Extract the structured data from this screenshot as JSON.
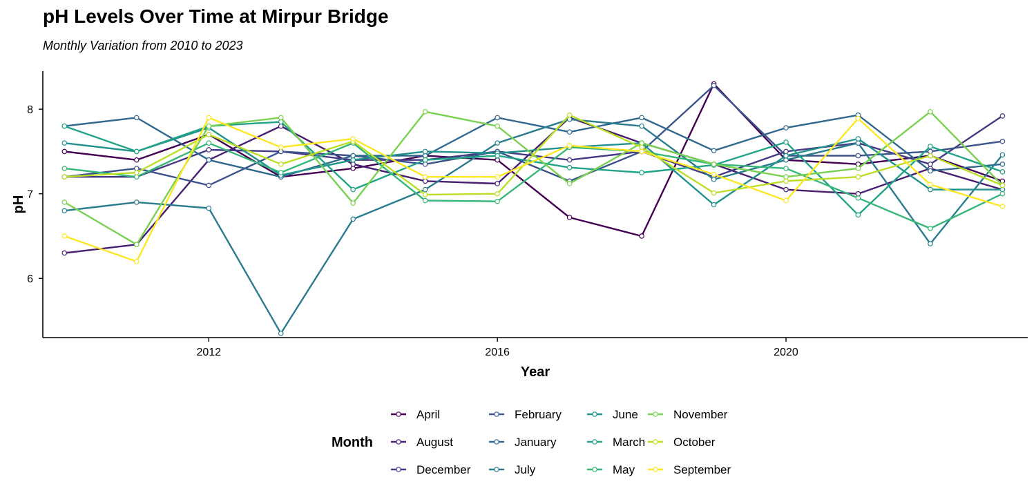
{
  "chart_data": {
    "type": "line",
    "title": "pH Levels Over Time at Mirpur Bridge",
    "subtitle": "Monthly Variation from 2010 to 2023",
    "xlabel": "Year",
    "ylabel": "pH",
    "xlim": [
      2009.7,
      2023.35
    ],
    "ylim": [
      5.3,
      8.45
    ],
    "x_ticks": [
      2012,
      2016,
      2020
    ],
    "y_ticks": [
      6,
      7,
      8
    ],
    "grid": false,
    "legend_title": "Month",
    "legend_position": "bottom",
    "x": [
      2010,
      2011,
      2012,
      2013,
      2014,
      2015,
      2016,
      2017,
      2018,
      2019,
      2020,
      2021,
      2022,
      2023
    ],
    "series": [
      {
        "name": "April",
        "color": "#440154",
        "values": [
          7.5,
          7.4,
          7.7,
          7.2,
          7.3,
          7.45,
          7.4,
          6.72,
          6.5,
          8.3,
          7.4,
          7.35,
          7.45,
          7.15
        ]
      },
      {
        "name": "August",
        "color": "#481F70",
        "values": [
          6.3,
          6.4,
          7.4,
          7.8,
          7.35,
          7.15,
          7.12,
          7.9,
          7.6,
          7.35,
          7.05,
          7.0,
          7.3,
          7.05
        ]
      },
      {
        "name": "December",
        "color": "#443983",
        "values": [
          7.2,
          7.2,
          7.52,
          7.5,
          7.4,
          7.4,
          7.5,
          7.4,
          7.5,
          7.2,
          7.5,
          7.6,
          7.35,
          7.92
        ]
      },
      {
        "name": "February",
        "color": "#3B528B",
        "values": [
          7.2,
          7.3,
          7.1,
          7.5,
          7.45,
          7.35,
          7.5,
          7.15,
          7.5,
          8.28,
          7.45,
          7.45,
          7.5,
          7.62
        ]
      },
      {
        "name": "January",
        "color": "#31688E",
        "values": [
          7.8,
          7.9,
          7.4,
          7.2,
          7.45,
          7.45,
          7.9,
          7.73,
          7.9,
          7.51,
          7.78,
          7.93,
          7.27,
          7.35
        ]
      },
      {
        "name": "July",
        "color": "#287C8E",
        "values": [
          6.8,
          6.9,
          6.83,
          5.35,
          6.7,
          7.05,
          7.6,
          7.88,
          7.8,
          7.17,
          7.4,
          7.6,
          6.41,
          7.46
        ]
      },
      {
        "name": "June",
        "color": "#21918C",
        "values": [
          7.6,
          7.5,
          7.78,
          7.22,
          7.4,
          7.5,
          7.48,
          7.55,
          7.6,
          6.87,
          7.45,
          7.65,
          7.05,
          7.05
        ]
      },
      {
        "name": "March",
        "color": "#20A386",
        "values": [
          7.8,
          7.5,
          7.8,
          7.85,
          7.05,
          7.4,
          7.45,
          7.31,
          7.25,
          7.34,
          7.61,
          6.75,
          7.56,
          7.26
        ]
      },
      {
        "name": "May",
        "color": "#35B779",
        "values": [
          7.3,
          7.2,
          7.6,
          7.25,
          7.6,
          6.92,
          6.91,
          7.55,
          7.5,
          7.35,
          7.3,
          6.95,
          6.59,
          7.0
        ]
      },
      {
        "name": "November",
        "color": "#7AD151",
        "values": [
          6.9,
          6.4,
          7.8,
          7.9,
          6.89,
          7.97,
          7.8,
          7.12,
          7.6,
          7.35,
          7.2,
          7.3,
          7.97,
          7.1
        ]
      },
      {
        "name": "October",
        "color": "#BBDF27",
        "values": [
          7.2,
          7.25,
          7.7,
          7.35,
          7.62,
          6.99,
          7.0,
          7.93,
          7.55,
          7.01,
          7.15,
          7.2,
          7.45,
          7.1
        ]
      },
      {
        "name": "September",
        "color": "#FDE725",
        "values": [
          6.5,
          6.2,
          7.9,
          7.55,
          7.65,
          7.2,
          7.2,
          7.57,
          7.5,
          7.23,
          6.92,
          7.89,
          7.11,
          6.85
        ]
      }
    ]
  }
}
